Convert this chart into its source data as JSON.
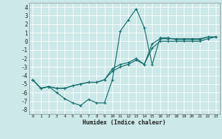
{
  "xlabel": "Humidex (Indice chaleur)",
  "background_color": "#cce8e8",
  "grid_color": "#ffffff",
  "line_color": "#1a7070",
  "xlim": [
    -0.5,
    23.5
  ],
  "ylim": [
    -8.5,
    4.5
  ],
  "line1_x": [
    0,
    1,
    2,
    3,
    4,
    5,
    6,
    7,
    8,
    9,
    10,
    11,
    12,
    13,
    14,
    15,
    16,
    17,
    18,
    19,
    20,
    21,
    22,
    23
  ],
  "line1_y": [
    -4.5,
    -5.5,
    -5.3,
    -6.0,
    -6.7,
    -7.2,
    -7.5,
    -6.8,
    -7.2,
    -7.2,
    -4.5,
    1.2,
    2.5,
    3.8,
    1.6,
    -2.7,
    0.4,
    0.4,
    0.2,
    0.2,
    0.2,
    0.2,
    0.5,
    0.5
  ],
  "line2_x": [
    0,
    1,
    2,
    3,
    4,
    5,
    6,
    7,
    8,
    9,
    10,
    11,
    12,
    13,
    14,
    15,
    16,
    17,
    18,
    19,
    20,
    21,
    22,
    23
  ],
  "line2_y": [
    -4.5,
    -5.5,
    -5.3,
    -5.5,
    -5.5,
    -5.2,
    -5.0,
    -4.8,
    -4.8,
    -4.5,
    -3.2,
    -2.7,
    -2.5,
    -2.0,
    -2.7,
    -0.3,
    0.3,
    0.3,
    0.3,
    0.3,
    0.3,
    0.3,
    0.5,
    0.5
  ],
  "line3_x": [
    0,
    1,
    2,
    3,
    4,
    5,
    6,
    7,
    8,
    9,
    10,
    11,
    12,
    13,
    14,
    15,
    16,
    17,
    18,
    19,
    20,
    21,
    22,
    23
  ],
  "line3_y": [
    -4.5,
    -5.5,
    -5.3,
    -5.5,
    -5.5,
    -5.2,
    -5.0,
    -4.8,
    -4.8,
    -4.5,
    -3.5,
    -3.0,
    -2.7,
    -2.2,
    -2.7,
    -0.8,
    0.0,
    0.0,
    0.0,
    0.0,
    0.0,
    0.0,
    0.3,
    0.5
  ],
  "xticks": [
    0,
    1,
    2,
    3,
    4,
    5,
    6,
    7,
    8,
    9,
    10,
    11,
    12,
    13,
    14,
    15,
    16,
    17,
    18,
    19,
    20,
    21,
    22,
    23
  ],
  "yticks": [
    -8,
    -7,
    -6,
    -5,
    -4,
    -3,
    -2,
    -1,
    0,
    1,
    2,
    3,
    4
  ]
}
